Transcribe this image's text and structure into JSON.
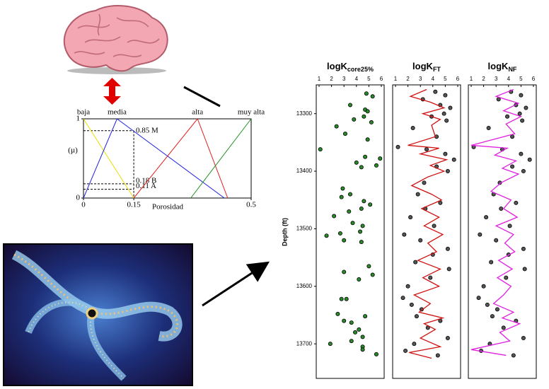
{
  "chart_data": [
    {
      "type": "line",
      "x_label": "Porosidad",
      "y_label": "(µ)",
      "xlim": [
        0,
        0.5
      ],
      "ylim": [
        0,
        1
      ],
      "xticks": [
        0,
        0.15,
        0.5
      ],
      "yticks": [
        0,
        1
      ],
      "reference_x": 0.15,
      "reference_lines": [
        {
          "value": 0.85,
          "label": "0.85 M"
        },
        {
          "value": 0.18,
          "label": "0.18 B"
        },
        {
          "value": 0.11,
          "label": "0.11 A"
        }
      ],
      "series": [
        {
          "name": "baja",
          "color": "#e8e000",
          "x": [
            0,
            0.15
          ],
          "values": [
            1,
            0
          ]
        },
        {
          "name": "media",
          "color": "#2020e0",
          "x": [
            0,
            0.1,
            0.42
          ],
          "values": [
            0,
            1,
            0
          ]
        },
        {
          "name": "alta",
          "color": "#e02020",
          "x": [
            0.15,
            0.34,
            0.43
          ],
          "values": [
            0,
            1,
            0
          ]
        },
        {
          "name": "muy alta",
          "color": "#209020",
          "x": [
            0.32,
            0.5
          ],
          "values": [
            0,
            1
          ]
        }
      ]
    },
    {
      "type": "scatter",
      "title": "logK",
      "title_subscript": "core25%",
      "y_label": "Depth (ft)",
      "xlim": [
        1,
        6
      ],
      "xticks": [
        1,
        2,
        3,
        4,
        5,
        6
      ],
      "ylim": [
        13760,
        13250
      ],
      "yticks": [
        13300,
        13400,
        13500,
        13600,
        13700
      ],
      "series": [
        {
          "color": "#2a8a2a",
          "x": [
            4.8,
            5.3,
            3.5,
            4.7,
            4.9,
            4.6,
            3.8,
            2.4,
            5.2,
            3.1,
            1.1,
            4.9,
            4.7,
            4.0,
            4.4,
            5.6,
            5.9,
            2.9,
            3.5,
            2.8,
            4.6,
            5.1,
            4.4,
            3.4,
            2.2,
            3.7,
            4.5,
            4.3,
            1.6,
            2.7,
            3.0,
            4.4,
            5.0,
            3.0,
            5.3,
            4.2,
            2.8,
            3.2,
            2.5,
            4.7,
            3.0,
            3.6,
            4.2,
            3.9,
            4.5,
            3.6,
            1.9,
            4.5,
            4.5,
            5.6
          ],
          "y": [
            13265,
            13270,
            13285,
            13293,
            13296,
            13305,
            13310,
            13322,
            13315,
            13335,
            13362,
            13345,
            13375,
            13385,
            13393,
            13390,
            13378,
            13430,
            13440,
            13445,
            13452,
            13458,
            13465,
            13470,
            13478,
            13490,
            13495,
            13505,
            13512,
            13508,
            13520,
            13523,
            13565,
            13575,
            13580,
            13588,
            13622,
            13622,
            13648,
            13652,
            13660,
            13663,
            13675,
            13680,
            13688,
            13695,
            13700,
            13705,
            13710,
            13718
          ]
        }
      ]
    },
    {
      "type": "scatter",
      "title": "logK",
      "title_subscript": "FT",
      "xlim": [
        1,
        6
      ],
      "xticks": [
        1,
        2,
        3,
        4,
        5,
        6
      ],
      "ylim": [
        13760,
        13250
      ],
      "series": [
        {
          "color": "#555555",
          "x": [
            4.2,
            5.0,
            3.2,
            4.6,
            5.4,
            4.9,
            3.9,
            5.1,
            2.4,
            4.3,
            1.2,
            3.5,
            5.0,
            5.7,
            4.3,
            5.2,
            3.3,
            2.8,
            4.6,
            3.4,
            2.2,
            4.1,
            1.7,
            3.0,
            5.2,
            4.0,
            2.6,
            5.3,
            3.8,
            2.0,
            1.6,
            2.3,
            3.1,
            2.7,
            4.6,
            3.6,
            5.2,
            2.5,
            1.8,
            4.4
          ],
          "y": [
            13262,
            13268,
            13275,
            13285,
            13290,
            13300,
            13305,
            13312,
            13325,
            13340,
            13358,
            13362,
            13370,
            13380,
            13392,
            13400,
            13420,
            13440,
            13455,
            13465,
            13480,
            13495,
            13510,
            13520,
            13535,
            13545,
            13558,
            13570,
            13585,
            13600,
            13620,
            13632,
            13640,
            13652,
            13660,
            13672,
            13690,
            13700,
            13712,
            13720
          ]
        },
        {
          "color": "#d01010",
          "line": true,
          "x": [
            3.5,
            2.2,
            3.8,
            4.9,
            3.2,
            4.6,
            3.9,
            4.2,
            2.0,
            4.5,
            3.0,
            5.1,
            3.8,
            4.9,
            3.6,
            2.3,
            3.9,
            4.7,
            3.1,
            4.5,
            3.3,
            4.8,
            3.6,
            4.3,
            2.8,
            4.6,
            3.2,
            4.5,
            2.5,
            3.8,
            2.9,
            4.8,
            3.3,
            4.2,
            3.0,
            4.6,
            2.1,
            3.9
          ],
          "y": [
            13258,
            13270,
            13280,
            13290,
            13300,
            13310,
            13320,
            13340,
            13355,
            13360,
            13370,
            13380,
            13390,
            13400,
            13410,
            13425,
            13440,
            13450,
            13465,
            13480,
            13495,
            13510,
            13525,
            13540,
            13555,
            13570,
            13585,
            13600,
            13615,
            13630,
            13645,
            13655,
            13665,
            13675,
            13690,
            13705,
            13715,
            13725
          ]
        }
      ]
    },
    {
      "type": "scatter",
      "title": "logK",
      "title_subscript": "NF",
      "xlim": [
        1,
        6
      ],
      "xticks": [
        1,
        2,
        3,
        4,
        5,
        6
      ],
      "ylim": [
        13760,
        13250
      ],
      "series": [
        {
          "color": "#555555",
          "x": [
            4.2,
            5.0,
            3.2,
            4.6,
            5.4,
            4.9,
            3.9,
            5.1,
            2.4,
            4.3,
            1.2,
            3.5,
            5.0,
            5.7,
            4.3,
            5.2,
            3.3,
            2.8,
            4.6,
            3.4,
            2.2,
            4.1,
            1.7,
            3.0,
            5.2,
            4.0,
            2.6,
            5.3,
            3.8,
            2.0,
            1.6,
            2.3,
            3.1,
            2.7,
            4.6,
            3.6,
            5.2,
            2.5,
            1.8,
            4.4
          ],
          "y": [
            13262,
            13268,
            13275,
            13285,
            13290,
            13300,
            13305,
            13312,
            13325,
            13340,
            13358,
            13362,
            13370,
            13380,
            13392,
            13400,
            13420,
            13440,
            13455,
            13465,
            13480,
            13495,
            13510,
            13520,
            13535,
            13545,
            13558,
            13570,
            13585,
            13600,
            13620,
            13632,
            13640,
            13652,
            13660,
            13672,
            13690,
            13700,
            13712,
            13720
          ]
        },
        {
          "color": "#e020e0",
          "line": true,
          "x": [
            4.4,
            3.0,
            4.8,
            3.6,
            5.0,
            3.8,
            4.5,
            1.0,
            3.9,
            2.9,
            4.6,
            3.5,
            4.8,
            3.4,
            2.6,
            4.2,
            3.6,
            4.7,
            3.0,
            4.4,
            3.7,
            4.5,
            3.2,
            4.3,
            3.1,
            4.2,
            3.6,
            2.8,
            4.4,
            3.5,
            4.9,
            3.3,
            4.1,
            1.0,
            3.8
          ],
          "y": [
            13258,
            13270,
            13282,
            13295,
            13305,
            13318,
            13335,
            13355,
            13360,
            13372,
            13382,
            13395,
            13405,
            13420,
            13435,
            13450,
            13465,
            13480,
            13495,
            13510,
            13525,
            13540,
            13555,
            13570,
            13585,
            13600,
            13615,
            13630,
            13645,
            13655,
            13665,
            13680,
            13695,
            13710,
            13720
          ]
        }
      ]
    }
  ]
}
